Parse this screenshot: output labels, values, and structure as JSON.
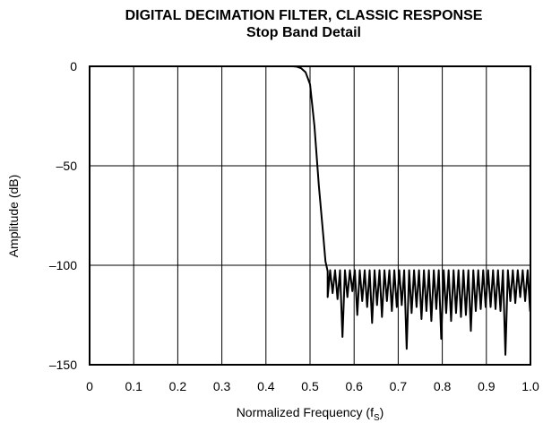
{
  "chart_data": {
    "type": "line",
    "title": "DIGITAL DECIMATION FILTER, CLASSIC RESPONSE",
    "subtitle": "Stop Band Detail",
    "xlabel": "Normalized Frequency (f",
    "xlabel_subscript": "S",
    "xlabel_close": ")",
    "ylabel": "Amplitude (dB)",
    "xlim": [
      0,
      1.0
    ],
    "ylim": [
      -150,
      0
    ],
    "x_ticks": [
      0,
      0.1,
      0.2,
      0.3,
      0.4,
      0.5,
      0.6,
      0.7,
      0.8,
      0.9,
      1.0
    ],
    "x_tick_labels": [
      "0",
      "0.1",
      "0.2",
      "0.3",
      "0.4",
      "0.5",
      "0.6",
      "0.7",
      "0.8",
      "0.9",
      "1.0"
    ],
    "y_ticks": [
      0,
      -50,
      -100,
      -150
    ],
    "y_tick_labels": [
      "0",
      "–50",
      "–100",
      "–150"
    ],
    "grid": true,
    "line_color": "#000000",
    "series": [
      {
        "passband": [
          [
            0.0,
            0.0
          ],
          [
            0.46,
            0.0
          ],
          [
            0.47,
            -0.2
          ],
          [
            0.48,
            -1.0
          ],
          [
            0.49,
            -3.0
          ],
          [
            0.5,
            -9.0
          ],
          [
            0.51,
            -30.0
          ],
          [
            0.52,
            -60.0
          ],
          [
            0.53,
            -85.0
          ],
          [
            0.535,
            -98.0
          ],
          [
            0.54,
            -103.0
          ]
        ],
        "stopband_start": 0.54,
        "stopband_end": 1.0,
        "ripple_period": 0.0112,
        "peak_level": -102.5,
        "notches": [
          [
            0.54,
            -116
          ],
          [
            0.5512,
            -114
          ],
          [
            0.5624,
            -117
          ],
          [
            0.5736,
            -136
          ],
          [
            0.5848,
            -116
          ],
          [
            0.596,
            -113
          ],
          [
            0.6072,
            -125
          ],
          [
            0.6184,
            -118
          ],
          [
            0.6296,
            -121
          ],
          [
            0.6408,
            -129
          ],
          [
            0.652,
            -120
          ],
          [
            0.6632,
            -126
          ],
          [
            0.6744,
            -118
          ],
          [
            0.6856,
            -123
          ],
          [
            0.6968,
            -121
          ],
          [
            0.708,
            -120
          ],
          [
            0.7192,
            -142
          ],
          [
            0.7304,
            -124
          ],
          [
            0.7416,
            -121
          ],
          [
            0.7528,
            -127
          ],
          [
            0.764,
            -123
          ],
          [
            0.7752,
            -128
          ],
          [
            0.7864,
            -122
          ],
          [
            0.7976,
            -137
          ],
          [
            0.8088,
            -124
          ],
          [
            0.82,
            -128
          ],
          [
            0.8312,
            -124
          ],
          [
            0.8424,
            -126
          ],
          [
            0.8536,
            -125
          ],
          [
            0.8648,
            -133
          ],
          [
            0.876,
            -123
          ],
          [
            0.8872,
            -122
          ],
          [
            0.8984,
            -121
          ],
          [
            0.9096,
            -121
          ],
          [
            0.9208,
            -122
          ],
          [
            0.932,
            -123
          ],
          [
            0.9432,
            -145
          ],
          [
            0.9544,
            -118
          ],
          [
            0.9656,
            -119
          ],
          [
            0.9768,
            -116
          ],
          [
            0.988,
            -118
          ],
          [
            0.9992,
            -123
          ]
        ]
      }
    ]
  }
}
